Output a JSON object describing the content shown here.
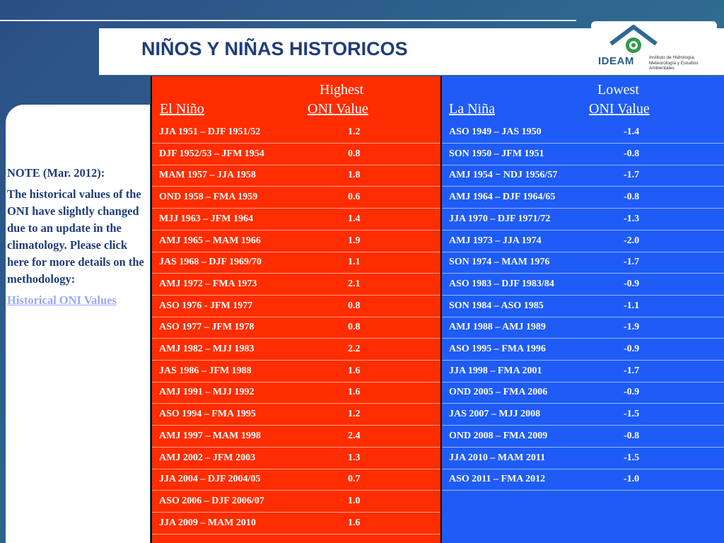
{
  "slide": {
    "title": "NIÑOS Y NIÑAS HISTORICOS",
    "logo": {
      "name": "IDEAM",
      "subtitle": "Instituto de Hidrología, Meteorología y Estudios Ambientales"
    },
    "note": {
      "heading": "NOTE (Mar. 2012):",
      "body": "The historical values of the ONI have slightly changed due to an update in the climatology.  Please click here for more details on the methodology:",
      "link_label": "Historical ONI Values"
    },
    "colors": {
      "el_nino": "#ff2d00",
      "la_nina": "#1f5cf6",
      "title": "#1f3d79",
      "link": "#9aa7ff"
    },
    "el_nino": {
      "label": "El Niño",
      "value_label_top": "Highest",
      "value_label": "ONI Value",
      "rows": [
        {
          "period": "JJA 1951 – DJF 1951/52",
          "value": "1.2"
        },
        {
          "period": "DJF 1952/53 – JFM 1954",
          "value": "0.8"
        },
        {
          "period": "MAM 1957 – JJA 1958",
          "value": "1.8"
        },
        {
          "period": "OND 1958  – FMA 1959",
          "value": "0.6"
        },
        {
          "period": "MJJ 1963 – JFM 1964",
          "value": "1.4"
        },
        {
          "period": "AMJ 1965 – MAM 1966",
          "value": "1.9"
        },
        {
          "period": "JAS 1968 – DJF 1969/70",
          "value": "1.1"
        },
        {
          "period": "AMJ 1972 – FMA 1973",
          "value": "2.1"
        },
        {
          "period": "ASO 1976 - JFM 1977",
          "value": "0.8"
        },
        {
          "period": "ASO 1977 – JFM 1978",
          "value": "0.8"
        },
        {
          "period": "AMJ 1982 – MJJ 1983",
          "value": "2.2"
        },
        {
          "period": "JAS 1986 – JFM 1988",
          "value": "1.6"
        },
        {
          "period": "AMJ 1991 – MJJ 1992",
          "value": "1.6"
        },
        {
          "period": "ASO 1994 – FMA 1995",
          "value": "1.2"
        },
        {
          "period": "AMJ 1997 – MAM 1998",
          "value": "2.4"
        },
        {
          "period": "AMJ 2002 – JFM 2003",
          "value": "1.3"
        },
        {
          "period": "JJA 2004 – DJF 2004/05",
          "value": "0.7"
        },
        {
          "period": "ASO 2006 – DJF 2006/07",
          "value": "1.0"
        },
        {
          "period": "JJA 2009 – MAM 2010",
          "value": "1.6"
        }
      ]
    },
    "la_nina": {
      "label": "La Niña",
      "value_label_top": "Lowest",
      "value_label": "ONI Value",
      "rows": [
        {
          "period": "ASO 1949 – JAS 1950",
          "value": "-1.4"
        },
        {
          "period": "SON 1950 – JFM 1951",
          "value": "-0.8"
        },
        {
          "period": "AMJ 1954 − NDJ 1956/57",
          "value": "-1.7"
        },
        {
          "period": "AMJ 1964 – DJF 1964/65",
          "value": "-0.8"
        },
        {
          "period": "JJA 1970 – DJF 1971/72",
          "value": "-1.3"
        },
        {
          "period": "AMJ 1973 – JJA 1974",
          "value": "-2.0"
        },
        {
          "period": "SON 1974 – MAM 1976",
          "value": "-1.7"
        },
        {
          "period": "ASO 1983 – DJF 1983/84",
          "value": "-0.9"
        },
        {
          "period": "SON 1984 – ASO 1985",
          "value": "-1.1"
        },
        {
          "period": "AMJ 1988 – AMJ 1989",
          "value": "-1.9"
        },
        {
          "period": "ASO 1995 – FMA 1996",
          "value": "-0.9"
        },
        {
          "period": "JJA 1998 – FMA 2001",
          "value": "-1.7"
        },
        {
          "period": "OND 2005 – FMA 2006",
          "value": "-0.9"
        },
        {
          "period": "JAS 2007  – MJJ 2008",
          "value": "-1.5"
        },
        {
          "period": "OND 2008 – FMA 2009",
          "value": "-0.8"
        },
        {
          "period": "JJA 2010 – MAM 2011",
          "value": "-1.5"
        },
        {
          "period": "ASO 2011 – FMA 2012",
          "value": "-1.0"
        }
      ]
    }
  }
}
